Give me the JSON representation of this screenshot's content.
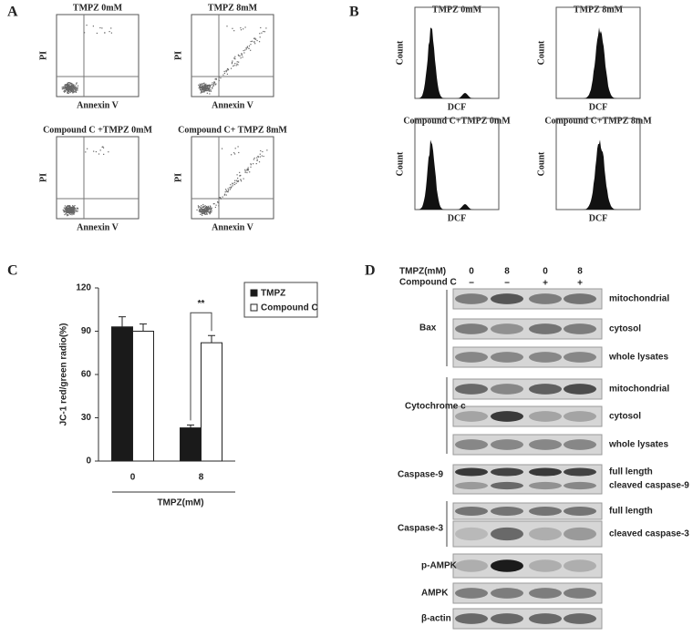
{
  "panel_a": {
    "label": "A",
    "plots": [
      {
        "title": "TMPZ 0mM",
        "xlabel": "Annexin V",
        "ylabel": "PI"
      },
      {
        "title": "TMPZ 8mM",
        "xlabel": "Annexin V",
        "ylabel": "PI"
      },
      {
        "title": "Compound C +TMPZ 0mM",
        "xlabel": "Annexin V",
        "ylabel": "PI"
      },
      {
        "title": "Compound C+ TMPZ 8mM",
        "xlabel": "Annexin V",
        "ylabel": "PI"
      }
    ]
  },
  "panel_b": {
    "label": "B",
    "plots": [
      {
        "title": "TMPZ 0mM",
        "xlabel": "DCF",
        "ylabel": "Count"
      },
      {
        "title": "TMPZ 8mM",
        "xlabel": "DCF",
        "ylabel": "Count"
      },
      {
        "title": "Compound C+TMPZ 0mM",
        "xlabel": "DCF",
        "ylabel": "Count"
      },
      {
        "title": "Compound C+TMPZ 8mM",
        "xlabel": "DCF",
        "ylabel": "Count"
      }
    ]
  },
  "chart_data": {
    "type": "bar",
    "label": "C",
    "ylabel": "JC-1 red/green radio(%)",
    "xlabel": "TMPZ(mM)",
    "categories": [
      "0",
      "8"
    ],
    "series": [
      {
        "name": "TMPZ",
        "color": "#1a1a1a",
        "values": [
          93,
          23
        ],
        "errors": [
          7,
          2
        ]
      },
      {
        "name": "Compound C",
        "color": "#ffffff",
        "values": [
          90,
          82
        ],
        "errors": [
          5,
          5
        ]
      }
    ],
    "ylim": [
      0,
      120
    ],
    "yticks": [
      0,
      30,
      60,
      90,
      120
    ],
    "annotation": "**"
  },
  "panel_d": {
    "label": "D",
    "header": {
      "row1_label": "TMPZ(mM)",
      "row1": [
        "0",
        "8",
        "0",
        "8"
      ],
      "row2_label": "Compound C",
      "row2": [
        "−",
        "−",
        "+",
        "+"
      ]
    },
    "groups": [
      {
        "name": "Bax",
        "rows": [
          "mitochondrial",
          "cytosol",
          "whole lysates"
        ]
      },
      {
        "name": "Cytochrome c",
        "rows": [
          "mitochondrial",
          "cytosol",
          "whole lysates"
        ]
      },
      {
        "name": "Caspase-9",
        "rows": [
          "full length",
          "cleaved caspase-9"
        ]
      },
      {
        "name": "Caspase-3",
        "rows": [
          "full length",
          "cleaved caspase-3"
        ]
      },
      {
        "name": "p-AMPK",
        "rows": []
      },
      {
        "name": "AMPK",
        "rows": []
      },
      {
        "name": "β-actin",
        "rows": []
      }
    ]
  }
}
